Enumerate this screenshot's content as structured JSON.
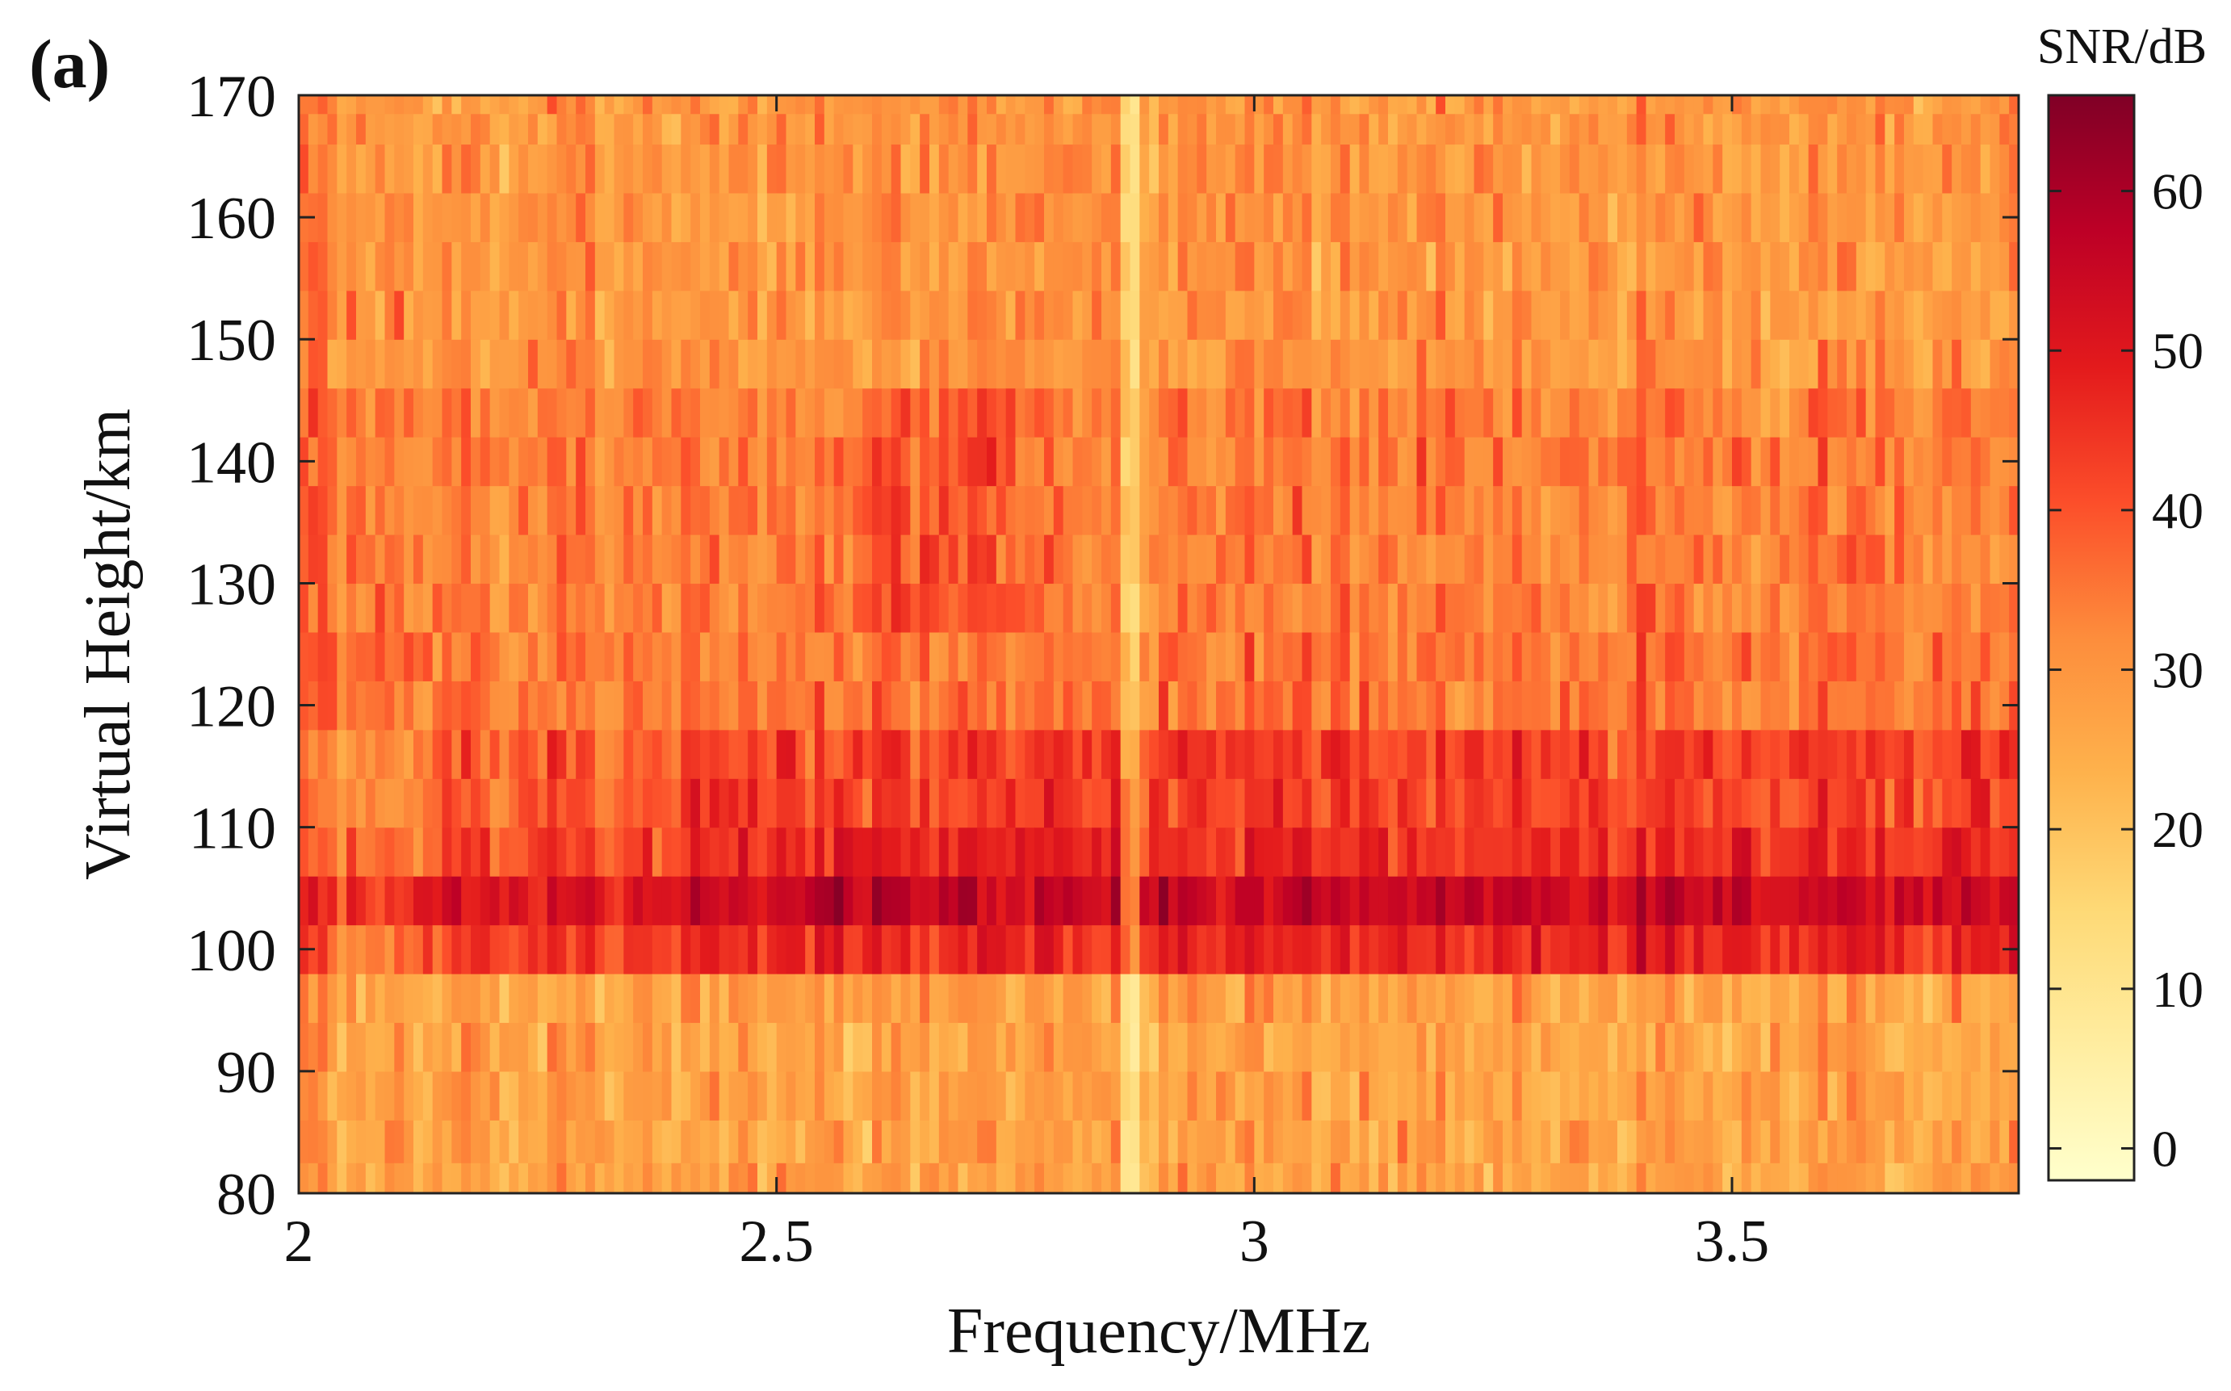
{
  "panel_label": "(a)",
  "chart_data": {
    "type": "heatmap",
    "xlabel": "Frequency/MHz",
    "ylabel": "Virtual Height/km",
    "xlim": [
      2,
      3.8
    ],
    "ylim": [
      80,
      170
    ],
    "xticks": [
      2,
      2.5,
      3,
      3.5
    ],
    "xtick_labels": [
      "2",
      "2.5",
      "3",
      "3.5"
    ],
    "yticks": [
      80,
      90,
      100,
      110,
      120,
      130,
      140,
      150,
      160,
      170
    ],
    "ytick_labels": [
      "80",
      "90",
      "100",
      "110",
      "120",
      "130",
      "140",
      "150",
      "160",
      "170"
    ],
    "colorbar": {
      "title": "SNR/dB",
      "range": [
        -2,
        66
      ],
      "ticks": [
        0,
        10,
        20,
        30,
        40,
        50,
        60
      ],
      "tick_labels": [
        "0",
        "10",
        "20",
        "30",
        "40",
        "50",
        "60"
      ],
      "colormap": [
        "#ffffcc",
        "#ffeda0",
        "#fed976",
        "#feb24c",
        "#fd8d3c",
        "#fc4e2a",
        "#e31a1c",
        "#bd0026",
        "#800026"
      ]
    },
    "grid": false,
    "frequency_step_mhz": 0.01,
    "height_bins_km": [
      [
        80,
        82.5
      ],
      [
        82.5,
        86
      ],
      [
        86,
        90
      ],
      [
        90,
        94
      ],
      [
        94,
        98
      ],
      [
        98,
        102
      ],
      [
        102,
        106
      ],
      [
        106,
        110
      ],
      [
        110,
        114
      ],
      [
        114,
        118
      ],
      [
        118,
        122
      ],
      [
        122,
        126
      ],
      [
        126,
        130
      ],
      [
        130,
        134
      ],
      [
        134,
        138
      ],
      [
        138,
        142
      ],
      [
        142,
        146
      ],
      [
        146,
        150
      ],
      [
        150,
        154
      ],
      [
        154,
        158
      ],
      [
        158,
        162
      ],
      [
        162,
        166
      ],
      [
        166,
        168.5
      ],
      [
        168.5,
        170
      ]
    ],
    "band_mean_snr_db": {
      "80-98": 27,
      "98-102": 47,
      "102-106": 55,
      "106-110": 46,
      "110-118": 43,
      "118-126": 35,
      "126-146": 34,
      "146-170": 30
    },
    "fine_structure": {
      "quiet_vertical_line_at_mhz": 2.87,
      "strong_layer_center_km": 104
    }
  }
}
